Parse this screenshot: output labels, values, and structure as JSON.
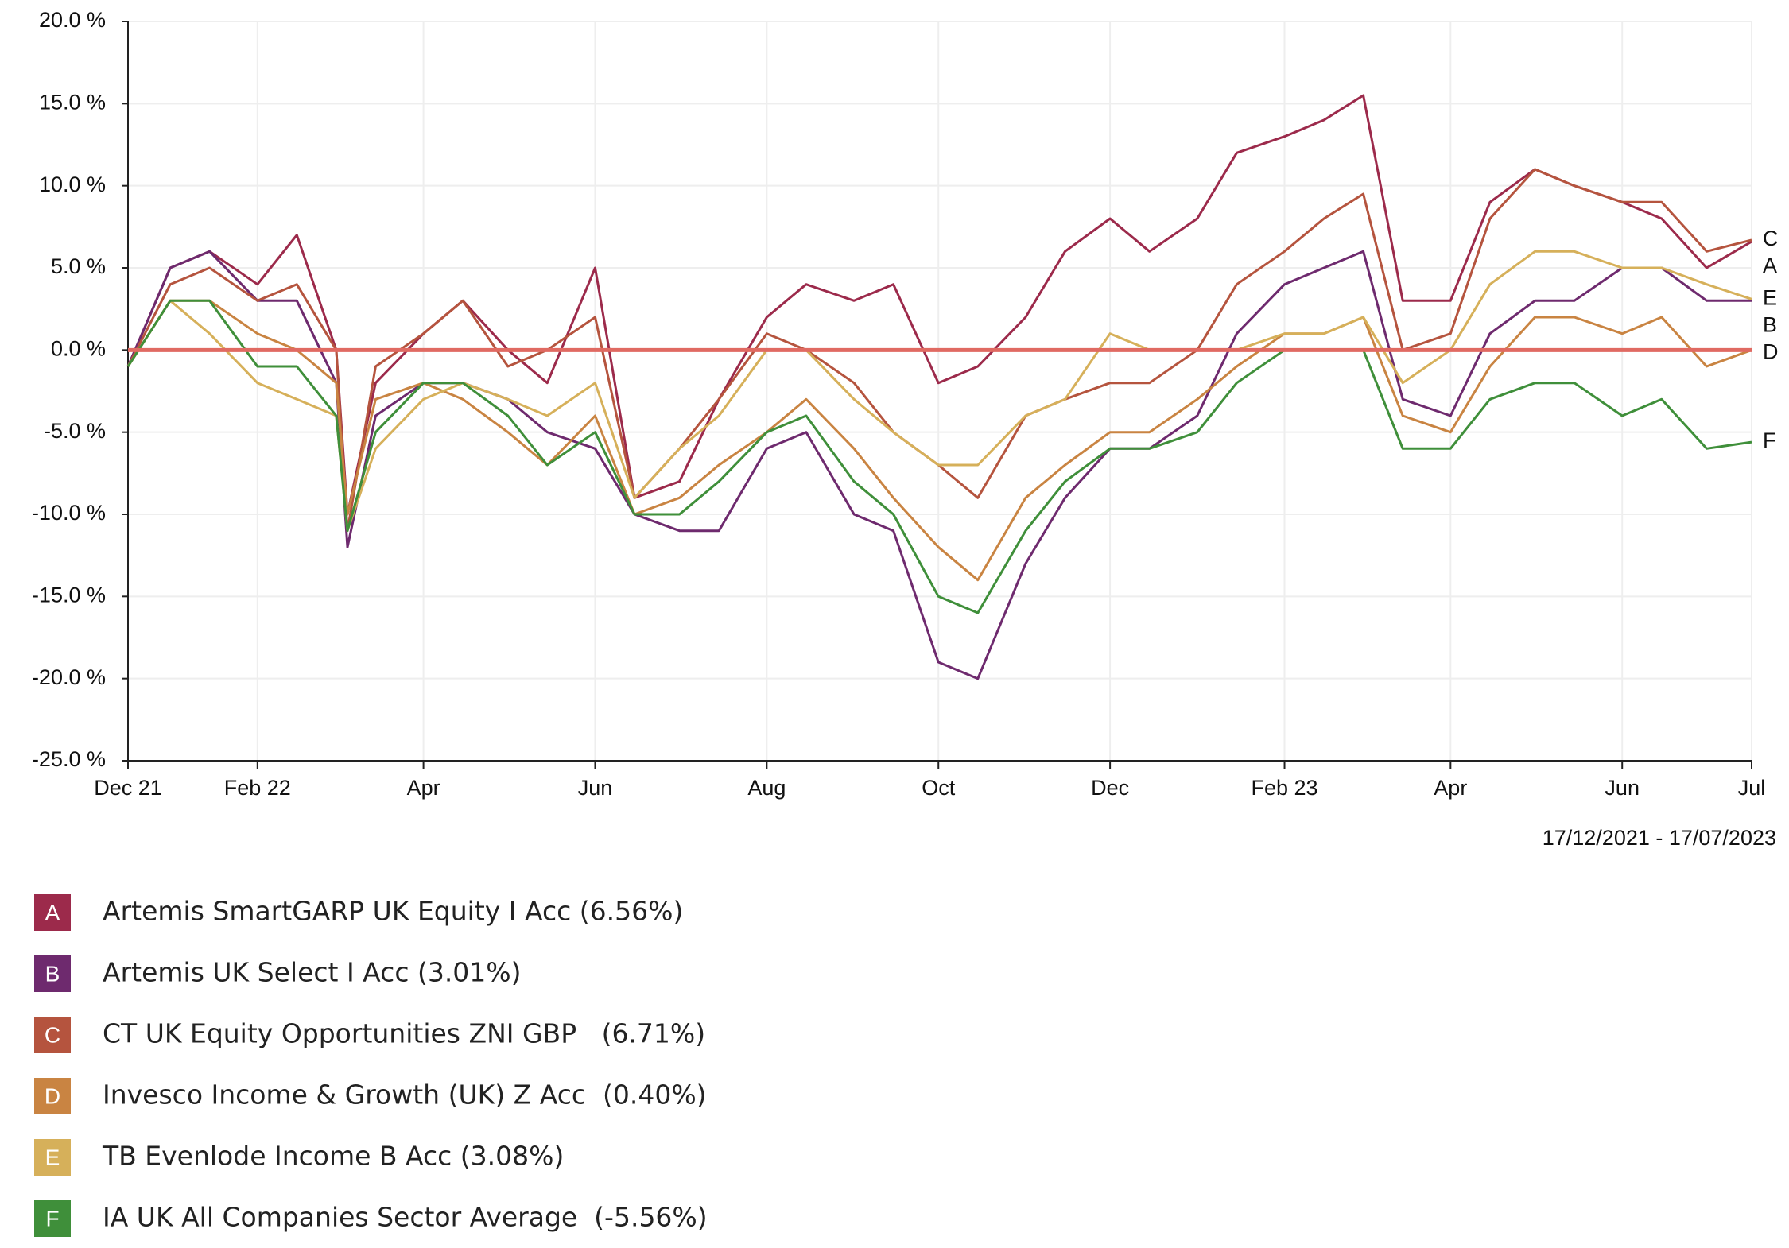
{
  "chart_data": {
    "type": "line",
    "date_range": "17/12/2021 - 17/07/2023",
    "x": [
      "2021-12-17",
      "2022-01-01",
      "2022-01-15",
      "2022-02-01",
      "2022-02-15",
      "2022-03-01",
      "2022-03-05",
      "2022-03-15",
      "2022-04-01",
      "2022-04-15",
      "2022-05-01",
      "2022-05-15",
      "2022-06-01",
      "2022-06-15",
      "2022-07-01",
      "2022-07-15",
      "2022-08-01",
      "2022-08-15",
      "2022-09-01",
      "2022-09-15",
      "2022-10-01",
      "2022-10-15",
      "2022-11-01",
      "2022-11-15",
      "2022-12-01",
      "2022-12-15",
      "2023-01-01",
      "2023-01-15",
      "2023-02-01",
      "2023-02-15",
      "2023-03-01",
      "2023-03-15",
      "2023-04-01",
      "2023-04-15",
      "2023-05-01",
      "2023-05-15",
      "2023-06-01",
      "2023-06-15",
      "2023-07-01",
      "2023-07-17"
    ],
    "series": [
      {
        "label": "A",
        "name": "Artemis SmartGARP UK Equity I Acc (6.56%)",
        "color": "#9c2a4b",
        "values": [
          -1,
          5,
          6,
          4,
          7,
          0,
          -10,
          -2,
          1,
          3,
          0,
          -2,
          5,
          -9,
          -8,
          -3,
          2,
          4,
          3,
          4,
          -2,
          -1,
          2,
          6,
          8,
          6,
          8,
          12,
          13,
          14,
          15.5,
          3,
          3,
          9,
          11,
          10,
          9,
          8,
          5,
          6.6
        ]
      },
      {
        "label": "B",
        "name": "Artemis UK Select I Acc (3.01%)",
        "color": "#6e2a6e",
        "values": [
          -1,
          5,
          6,
          3,
          3,
          -2,
          -12,
          -4,
          -2,
          -2,
          -3,
          -5,
          -6,
          -10,
          -11,
          -11,
          -6,
          -5,
          -10,
          -11,
          -19,
          -20,
          -13,
          -9,
          -6,
          -6,
          -4,
          1,
          4,
          5,
          6,
          -3,
          -4,
          1,
          3,
          3,
          5,
          5,
          3,
          3
        ]
      },
      {
        "label": "C",
        "name": "CT UK Equity Opportunities ZNI GBP   (6.71%)",
        "color": "#b5543e",
        "values": [
          -1,
          4,
          5,
          3,
          4,
          0,
          -11,
          -1,
          1,
          3,
          -1,
          0,
          2,
          -9,
          -6,
          -3,
          1,
          0,
          -2,
          -5,
          -7,
          -9,
          -4,
          -3,
          -2,
          -2,
          0,
          4,
          6,
          8,
          9.5,
          0,
          1,
          8,
          11,
          10,
          9,
          9,
          6,
          6.7
        ]
      },
      {
        "label": "D",
        "name": "Invesco Income & Growth (UK) Z Acc  (0.40%)",
        "color": "#c98442",
        "values": [
          -1,
          3,
          3,
          1,
          0,
          -2,
          -10,
          -3,
          -2,
          -3,
          -5,
          -7,
          -4,
          -10,
          -9,
          -7,
          -5,
          -3,
          -6,
          -9,
          -12,
          -14,
          -9,
          -7,
          -5,
          -5,
          -3,
          -1,
          1,
          1,
          2,
          -4,
          -5,
          -1,
          2,
          2,
          1,
          2,
          -1,
          0
        ]
      },
      {
        "label": "E",
        "name": "TB Evenlode Income B Acc (3.08%)",
        "color": "#d6b05a",
        "values": [
          -1,
          3,
          1,
          -2,
          -3,
          -4,
          -11,
          -6,
          -3,
          -2,
          -3,
          -4,
          -2,
          -9,
          -6,
          -4,
          0,
          0,
          -3,
          -5,
          -7,
          -7,
          -4,
          -3,
          1,
          0,
          0,
          0,
          1,
          1,
          2,
          -2,
          0,
          4,
          6,
          6,
          5,
          5,
          4,
          3.1
        ]
      },
      {
        "label": "F",
        "name": "IA UK All Companies Sector Average  (-5.56%)",
        "color": "#3f8f3a",
        "values": [
          -1,
          3,
          3,
          -1,
          -1,
          -4,
          -11,
          -5,
          -2,
          -2,
          -4,
          -7,
          -5,
          -10,
          -10,
          -8,
          -5,
          -4,
          -8,
          -10,
          -15,
          -16,
          -11,
          -8,
          -6,
          -6,
          -5,
          -2,
          0,
          0,
          0,
          -6,
          -6,
          -3,
          -2,
          -2,
          -4,
          -3,
          -6,
          -5.6
        ]
      }
    ],
    "ylim": [
      -25,
      20
    ],
    "yticks": [
      {
        "value": -25,
        "label": "-25.0 %"
      },
      {
        "value": -20,
        "label": "-20.0 %"
      },
      {
        "value": -15,
        "label": "-15.0 %"
      },
      {
        "value": -10,
        "label": "-10.0 %"
      },
      {
        "value": -5,
        "label": "-5.0 %"
      },
      {
        "value": 0,
        "label": "0.0 %"
      },
      {
        "value": 5,
        "label": "5.0 %"
      },
      {
        "value": 10,
        "label": "10.0 %"
      },
      {
        "value": 15,
        "label": "15.0 %"
      },
      {
        "value": 20,
        "label": "20.0 %"
      }
    ],
    "xlim": [
      "2021-12-17",
      "2023-07-17"
    ],
    "xticks": [
      {
        "value": "2021-12-17",
        "label": "Dec 21"
      },
      {
        "value": "2022-02-01",
        "label": "Feb 22"
      },
      {
        "value": "2022-04-01",
        "label": "Apr"
      },
      {
        "value": "2022-06-01",
        "label": "Jun"
      },
      {
        "value": "2022-08-01",
        "label": "Aug"
      },
      {
        "value": "2022-10-01",
        "label": "Oct"
      },
      {
        "value": "2022-12-01",
        "label": "Dec"
      },
      {
        "value": "2023-02-01",
        "label": "Feb 23"
      },
      {
        "value": "2023-04-01",
        "label": "Apr"
      },
      {
        "value": "2023-06-01",
        "label": "Jun"
      },
      {
        "value": "2023-07-17",
        "label": "Jul"
      }
    ],
    "grid": true,
    "zero_line_color": "#e06a62"
  }
}
